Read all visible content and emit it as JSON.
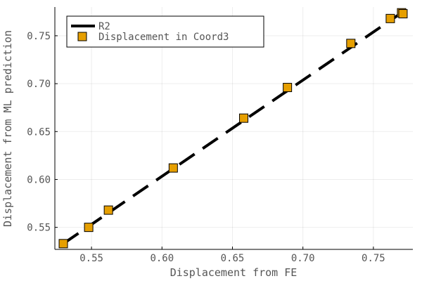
{
  "chart_data": {
    "type": "scatter",
    "xlabel": "Displacement from FE",
    "ylabel": "Displacement from ML prediction",
    "xlim": [
      0.524,
      0.778
    ],
    "ylim": [
      0.527,
      0.78
    ],
    "x_ticks": [
      0.55,
      0.6,
      0.65,
      0.7,
      0.75
    ],
    "x_tick_labels": [
      "0.55",
      "0.60",
      "0.65",
      "0.70",
      "0.75"
    ],
    "y_ticks": [
      0.55,
      0.6,
      0.65,
      0.7,
      0.75
    ],
    "y_tick_labels": [
      "0.55",
      "0.60",
      "0.65",
      "0.70",
      "0.75"
    ],
    "grid": true,
    "legend_position": "top-left",
    "series": [
      {
        "name": "R2",
        "type": "line",
        "style": "dashed",
        "color": "#000000",
        "x": [
          0.53,
          0.771
        ],
        "y": [
          0.533,
          0.775
        ]
      },
      {
        "name": "Displacement in Coord3",
        "type": "scatter",
        "marker": "square",
        "color": "#E69F00",
        "x": [
          0.53,
          0.548,
          0.562,
          0.608,
          0.658,
          0.689,
          0.734,
          0.762,
          0.77,
          0.771
        ],
        "y": [
          0.533,
          0.55,
          0.568,
          0.612,
          0.664,
          0.696,
          0.742,
          0.768,
          0.774,
          0.773
        ]
      }
    ]
  }
}
